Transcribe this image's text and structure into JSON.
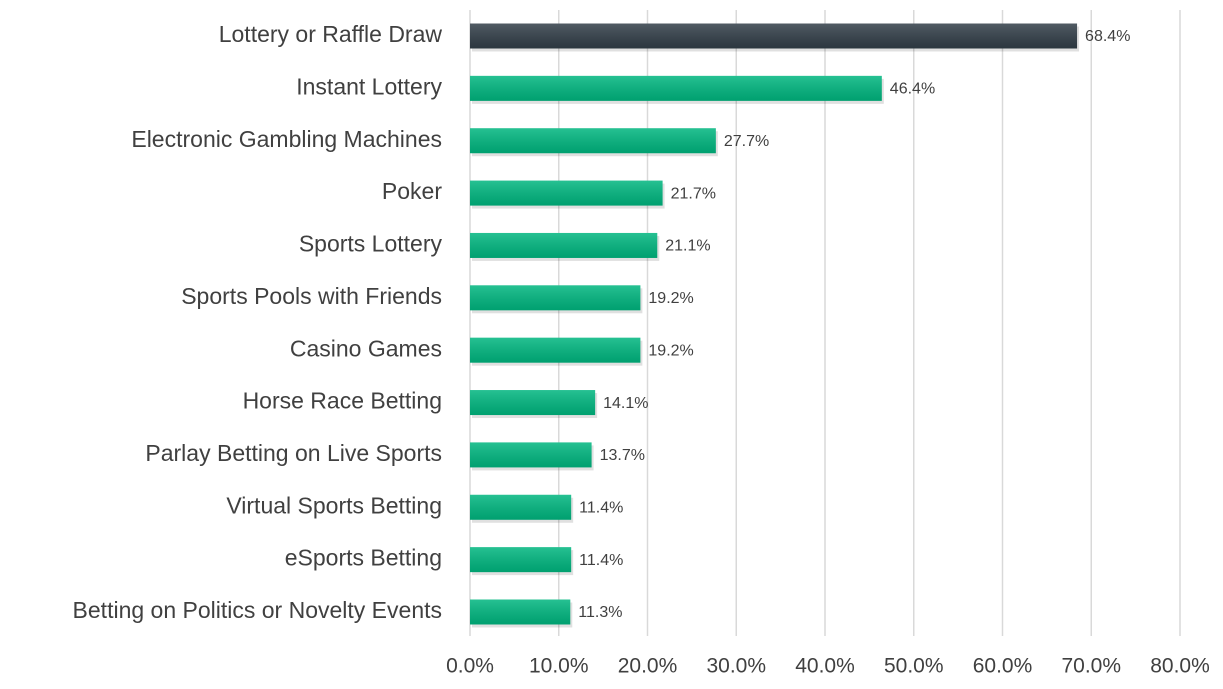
{
  "chart_data": {
    "type": "bar",
    "orientation": "horizontal",
    "categories": [
      "Lottery or Raffle Draw",
      "Instant Lottery",
      "Electronic Gambling Machines",
      "Poker",
      "Sports Lottery",
      "Sports Pools with Friends",
      "Casino Games",
      "Horse Race Betting",
      "Parlay Betting on Live Sports",
      "Virtual Sports Betting",
      "eSports Betting",
      "Betting on Politics or Novelty Events"
    ],
    "values": [
      68.4,
      46.4,
      27.7,
      21.7,
      21.1,
      19.2,
      19.2,
      14.1,
      13.7,
      11.4,
      11.4,
      11.3
    ],
    "value_labels": [
      "68.4%",
      "46.4%",
      "27.7%",
      "21.7%",
      "21.1%",
      "19.2%",
      "19.2%",
      "14.1%",
      "13.7%",
      "11.4%",
      "11.4%",
      "11.3%"
    ],
    "colors": [
      "#323e48",
      "#00b67f",
      "#00b67f",
      "#00b67f",
      "#00b67f",
      "#00b67f",
      "#00b67f",
      "#00b67f",
      "#00b67f",
      "#00b67f",
      "#00b67f",
      "#00b67f"
    ],
    "xlim": [
      0,
      80
    ],
    "xticks": [
      {
        "value": 0,
        "label": "0.0%"
      },
      {
        "value": 10,
        "label": "10.0%"
      },
      {
        "value": 20,
        "label": "20.0%"
      },
      {
        "value": 30,
        "label": "30.0%"
      },
      {
        "value": 40,
        "label": "40.0%"
      },
      {
        "value": 50,
        "label": "50.0%"
      },
      {
        "value": 60,
        "label": "60.0%"
      },
      {
        "value": 70,
        "label": "70.0%"
      },
      {
        "value": 80,
        "label": "80.0%"
      }
    ],
    "grid": true
  }
}
